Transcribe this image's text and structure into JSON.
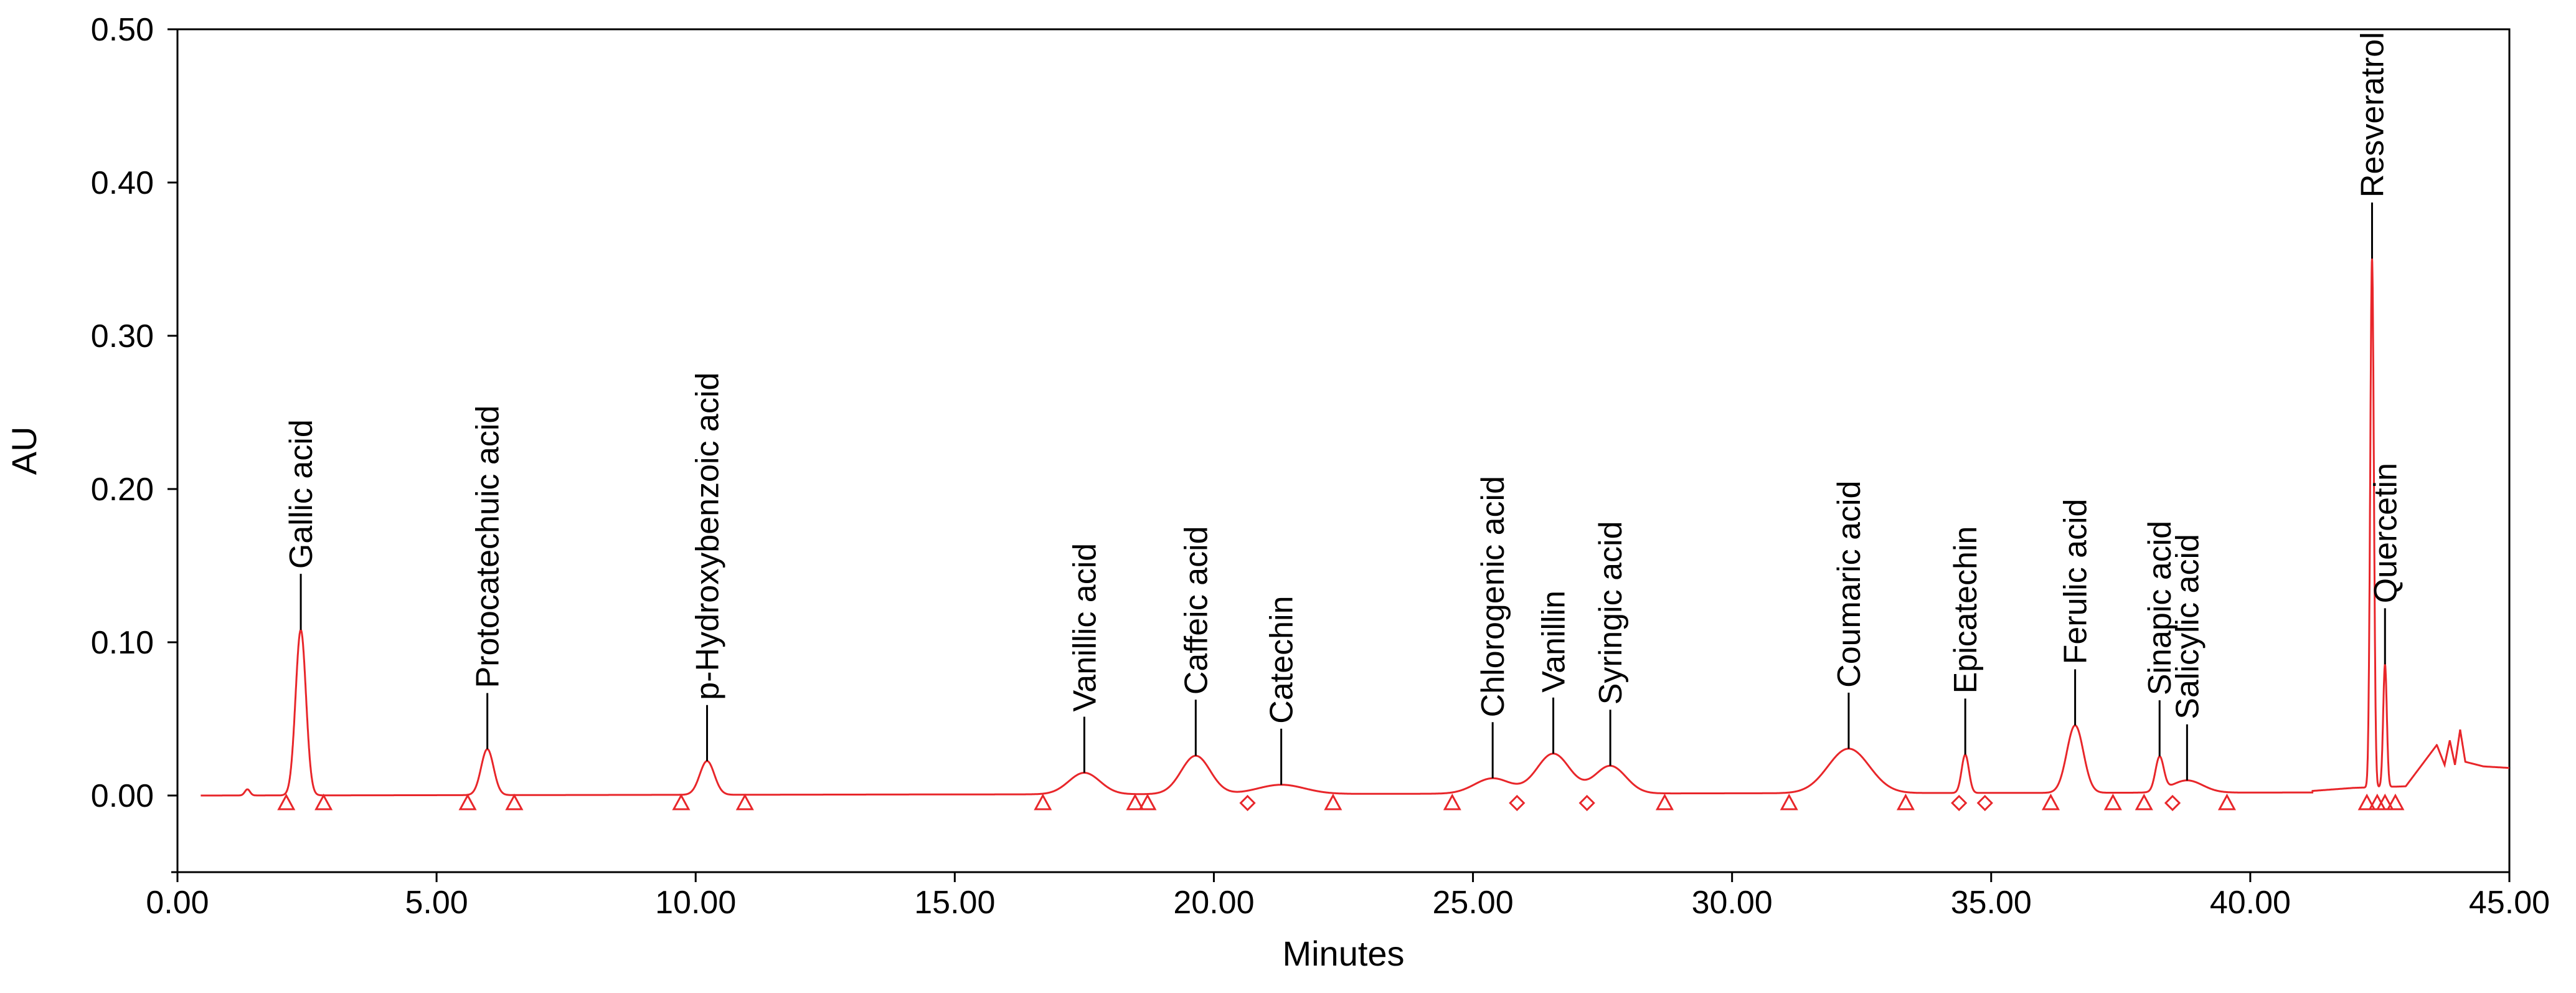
{
  "chart_data": {
    "type": "line",
    "title": "",
    "xlabel": "Minutes",
    "ylabel": "AU",
    "xlim": [
      0,
      45
    ],
    "ylim": [
      -0.05,
      0.5
    ],
    "x_ticks": [
      0,
      5,
      10,
      15,
      20,
      25,
      30,
      35,
      40,
      45
    ],
    "x_tick_labels": [
      "0.00",
      "5.00",
      "10.00",
      "15.00",
      "20.00",
      "25.00",
      "30.00",
      "35.00",
      "40.00",
      "45.00"
    ],
    "y_ticks": [
      0,
      0.1,
      0.2,
      0.3,
      0.4,
      0.5
    ],
    "y_tick_labels": [
      "0.00",
      "0.10",
      "0.20",
      "0.30",
      "0.40",
      "0.50"
    ],
    "grid": false,
    "trace_color": "#e8262a",
    "label_color": "#000000",
    "baseline": {
      "x_start": 0.45,
      "x_end": 45,
      "level_start": 0.0,
      "level_end": 0.002,
      "tail": [
        {
          "x": 41.2,
          "y": 0.003
        },
        {
          "x": 42.0,
          "y": 0.005
        },
        {
          "x": 43.0,
          "y": 0.006
        },
        {
          "x": 43.6,
          "y": 0.033
        },
        {
          "x": 43.75,
          "y": 0.02
        },
        {
          "x": 43.85,
          "y": 0.036
        },
        {
          "x": 43.95,
          "y": 0.02
        },
        {
          "x": 44.05,
          "y": 0.043
        },
        {
          "x": 44.15,
          "y": 0.022
        },
        {
          "x": 44.5,
          "y": 0.019
        },
        {
          "x": 45.0,
          "y": 0.018
        }
      ],
      "blips": [
        {
          "x": 1.35,
          "y": 0.004,
          "width": 0.05
        }
      ]
    },
    "peaks": [
      {
        "name": "Gallic acid",
        "rt": 2.38,
        "height": 0.108,
        "width": 0.1
      },
      {
        "name": "Protocatechuic acid",
        "rt": 5.98,
        "height": 0.03,
        "width": 0.12
      },
      {
        "name": "p-Hydroxybenzoic acid",
        "rt": 10.22,
        "height": 0.022,
        "width": 0.14
      },
      {
        "name": "Vanillic acid",
        "rt": 17.5,
        "height": 0.014,
        "width": 0.3
      },
      {
        "name": "Caffeic acid",
        "rt": 19.65,
        "height": 0.025,
        "width": 0.28
      },
      {
        "name": "Catechin",
        "rt": 21.3,
        "height": 0.006,
        "width": 0.45
      },
      {
        "name": "Chlorogenic acid",
        "rt": 25.38,
        "height": 0.01,
        "width": 0.35
      },
      {
        "name": "Vanillin",
        "rt": 26.55,
        "height": 0.026,
        "width": 0.32
      },
      {
        "name": "Syringic acid",
        "rt": 27.65,
        "height": 0.018,
        "width": 0.3
      },
      {
        "name": "Coumaric acid",
        "rt": 32.25,
        "height": 0.029,
        "width": 0.4
      },
      {
        "name": "Epicatechin",
        "rt": 34.5,
        "height": 0.025,
        "width": 0.07
      },
      {
        "name": "Ferulic acid",
        "rt": 36.62,
        "height": 0.044,
        "width": 0.16
      },
      {
        "name": "Sinapic acid",
        "rt": 38.25,
        "height": 0.022,
        "width": 0.08
      },
      {
        "name": "Salicylic acid",
        "rt": 38.78,
        "height": 0.008,
        "width": 0.3
      },
      {
        "name": "Resveratrol",
        "rt": 42.35,
        "height": 0.345,
        "width": 0.035
      },
      {
        "name": "Quercetin",
        "rt": 42.6,
        "height": 0.08,
        "width": 0.035
      }
    ],
    "integration_markers": [
      {
        "x": 2.1,
        "shape": "triangle"
      },
      {
        "x": 2.82,
        "shape": "triangle"
      },
      {
        "x": 5.6,
        "shape": "triangle"
      },
      {
        "x": 6.5,
        "shape": "triangle"
      },
      {
        "x": 9.72,
        "shape": "triangle"
      },
      {
        "x": 10.95,
        "shape": "triangle"
      },
      {
        "x": 16.7,
        "shape": "triangle"
      },
      {
        "x": 18.48,
        "shape": "triangle"
      },
      {
        "x": 18.72,
        "shape": "triangle"
      },
      {
        "x": 20.65,
        "shape": "diamond"
      },
      {
        "x": 22.3,
        "shape": "triangle"
      },
      {
        "x": 24.6,
        "shape": "triangle"
      },
      {
        "x": 25.85,
        "shape": "diamond"
      },
      {
        "x": 27.2,
        "shape": "diamond"
      },
      {
        "x": 28.7,
        "shape": "triangle"
      },
      {
        "x": 31.1,
        "shape": "triangle"
      },
      {
        "x": 33.35,
        "shape": "triangle"
      },
      {
        "x": 34.38,
        "shape": "diamond"
      },
      {
        "x": 34.88,
        "shape": "diamond"
      },
      {
        "x": 36.15,
        "shape": "triangle"
      },
      {
        "x": 37.35,
        "shape": "triangle"
      },
      {
        "x": 37.95,
        "shape": "triangle"
      },
      {
        "x": 38.5,
        "shape": "diamond"
      },
      {
        "x": 39.55,
        "shape": "triangle"
      },
      {
        "x": 42.25,
        "shape": "triangle"
      },
      {
        "x": 42.45,
        "shape": "triangle"
      },
      {
        "x": 42.6,
        "shape": "triangle"
      },
      {
        "x": 42.8,
        "shape": "triangle"
      }
    ]
  }
}
